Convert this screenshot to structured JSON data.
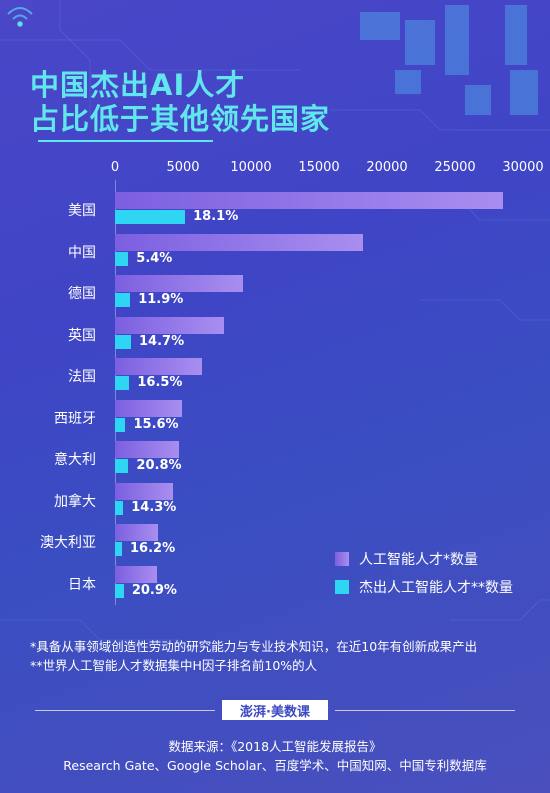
{
  "title": {
    "line1": "中国杰出AI人才",
    "line2": "占比低于其他领先国家"
  },
  "chart_data": {
    "type": "bar",
    "orientation": "horizontal",
    "title": "中国杰出AI人才占比低于其他领先国家",
    "categories": [
      "美国",
      "中国",
      "德国",
      "英国",
      "法国",
      "西班牙",
      "意大利",
      "加拿大",
      "澳大利亚",
      "日本"
    ],
    "series": [
      {
        "name": "人工智能人才*数量",
        "values": [
          28536,
          18232,
          9441,
          7998,
          6395,
          4942,
          4740,
          4228,
          3186,
          3117
        ]
      },
      {
        "name": "杰出人工智能人才**数量",
        "values": [
          5158,
          977,
          1119,
          1177,
          1056,
          772,
          987,
          606,
          515,
          651
        ]
      }
    ],
    "data_labels": [
      "18.1%",
      "5.4%",
      "11.9%",
      "14.7%",
      "16.5%",
      "15.6%",
      "20.8%",
      "14.3%",
      "16.2%",
      "20.9%"
    ],
    "x_ticks": [
      "0",
      "5000",
      "10000",
      "15000",
      "20000",
      "25000",
      "30000"
    ],
    "xlim": [
      0,
      30000
    ],
    "legend_position": "bottom-right",
    "grid": false,
    "colors": {
      "talent": "#9b7fee",
      "top_talent": "#2fd6f4"
    }
  },
  "footnotes": [
    "*具备从事领域创造性劳动的研究能力与专业技术知识，在近10年有创新成果产出",
    "**世界人工智能人才数据集中H因子排名前10%的人"
  ],
  "brand": "澎湃·美数课",
  "source_line1": "数据来源：《2018人工智能发展报告》",
  "source_line2": "Research Gate、Google Scholar、百度学术、中国知网、中国专利数据库"
}
